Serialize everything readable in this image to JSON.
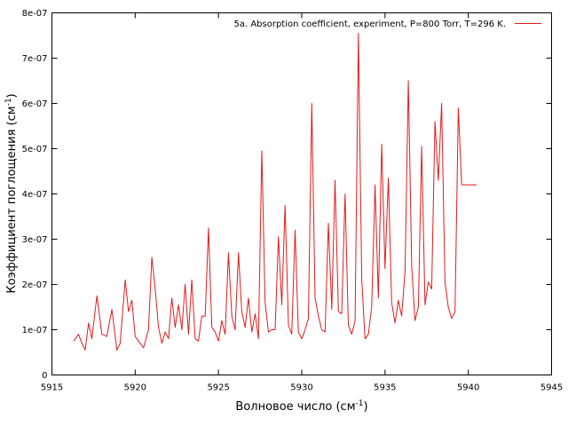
{
  "chart_data": {
    "type": "line",
    "xlabel_main": "Волновое число (см",
    "xlabel_sup": "-1",
    "xlabel_close": ")",
    "ylabel_main": "Коэффициент поглощения (см",
    "ylabel_sup": "-1",
    "ylabel_close": ")",
    "xlim": [
      5915,
      5945
    ],
    "ylim": [
      0,
      8e-07
    ],
    "xticks": [
      5915,
      5920,
      5925,
      5930,
      5935,
      5940,
      5945
    ],
    "xtick_labels": [
      "5915",
      "5920",
      "5925",
      "5930",
      "5935",
      "5940",
      "5945"
    ],
    "yticks": [
      0,
      1e-07,
      2e-07,
      3e-07,
      4e-07,
      5e-07,
      6e-07,
      7e-07,
      8e-07
    ],
    "ytick_labels": [
      "0",
      "1e-07",
      "2e-07",
      "3e-07",
      "4e-07",
      "5e-07",
      "6e-07",
      "7e-07",
      "8e-07"
    ],
    "grid": false,
    "legend_position": "top-right",
    "series": [
      {
        "name": "5a. Absorption coefficient, experiment, P=800 Torr, T=296 K.",
        "color": "#e31a1c",
        "x": [
          5916.3,
          5916.6,
          5916.8,
          5917.0,
          5917.2,
          5917.4,
          5917.7,
          5918.0,
          5918.3,
          5918.6,
          5918.9,
          5919.1,
          5919.4,
          5919.6,
          5919.8,
          5920.0,
          5920.2,
          5920.5,
          5920.8,
          5921.0,
          5921.2,
          5921.4,
          5921.6,
          5921.8,
          5922.0,
          5922.2,
          5922.4,
          5922.6,
          5922.8,
          5923.0,
          5923.2,
          5923.4,
          5923.6,
          5923.8,
          5924.0,
          5924.2,
          5924.4,
          5924.6,
          5924.8,
          5925.0,
          5925.2,
          5925.4,
          5925.6,
          5925.8,
          5926.0,
          5926.2,
          5926.4,
          5926.6,
          5926.8,
          5927.0,
          5927.2,
          5927.4,
          5927.6,
          5927.8,
          5928.0,
          5928.2,
          5928.4,
          5928.6,
          5928.8,
          5929.0,
          5929.2,
          5929.4,
          5929.6,
          5929.8,
          5930.0,
          5930.2,
          5930.4,
          5930.6,
          5930.8,
          5931.0,
          5931.2,
          5931.4,
          5931.6,
          5931.8,
          5932.0,
          5932.2,
          5932.4,
          5932.6,
          5932.8,
          5933.0,
          5933.2,
          5933.4,
          5933.6,
          5933.8,
          5934.0,
          5934.2,
          5934.4,
          5934.6,
          5934.8,
          5935.0,
          5935.2,
          5935.4,
          5935.6,
          5935.8,
          5936.0,
          5936.2,
          5936.4,
          5936.6,
          5936.8,
          5937.0,
          5937.2,
          5937.4,
          5937.6,
          5937.8,
          5938.0,
          5938.2,
          5938.4,
          5938.6,
          5938.8,
          5939.0,
          5939.2,
          5939.4,
          5939.6,
          5939.8,
          5940.0,
          5940.2,
          5940.4,
          5940.5
        ],
        "y": [
          7.5e-08,
          9e-08,
          7e-08,
          5.5e-08,
          1.15e-07,
          8e-08,
          1.75e-07,
          9e-08,
          8.5e-08,
          1.45e-07,
          5.5e-08,
          7e-08,
          2.1e-07,
          1.4e-07,
          1.65e-07,
          8.5e-08,
          7.5e-08,
          6e-08,
          1e-07,
          2.6e-07,
          1.9e-07,
          1.05e-07,
          7e-08,
          9.5e-08,
          8e-08,
          1.7e-07,
          1.05e-07,
          1.55e-07,
          1e-07,
          2e-07,
          9e-08,
          2.1e-07,
          8e-08,
          7.5e-08,
          1.3e-07,
          1.3e-07,
          3.25e-07,
          1.05e-07,
          9.5e-08,
          7.5e-08,
          1.2e-07,
          9e-08,
          2.7e-07,
          1.3e-07,
          1e-07,
          2.7e-07,
          1.4e-07,
          1.05e-07,
          1.7e-07,
          9.5e-08,
          1.35e-07,
          8e-08,
          4.95e-07,
          1.6e-07,
          9.5e-08,
          1e-07,
          1e-07,
          3.05e-07,
          1.55e-07,
          3.75e-07,
          1.1e-07,
          9e-08,
          3.2e-07,
          9.5e-08,
          8e-08,
          1e-07,
          1.25e-07,
          6e-07,
          1.7e-07,
          1.3e-07,
          1e-07,
          9.5e-08,
          3.35e-07,
          1.45e-07,
          4.3e-07,
          1.4e-07,
          1.35e-07,
          4e-07,
          1.1e-07,
          9e-08,
          1.2e-07,
          7.55e-07,
          2.1e-07,
          8e-08,
          9e-08,
          1.5e-07,
          4.2e-07,
          1.7e-07,
          5.1e-07,
          2.35e-07,
          4.35e-07,
          1.6e-07,
          1.15e-07,
          1.65e-07,
          1.3e-07,
          2.3e-07,
          6.5e-07,
          2.4e-07,
          1.2e-07,
          1.5e-07,
          5.05e-07,
          1.55e-07,
          2.05e-07,
          1.9e-07,
          5.6e-07,
          4.3e-07,
          6e-07,
          2.05e-07,
          1.5e-07,
          1.25e-07,
          1.4e-07,
          5.9e-07,
          4.2e-07,
          4.2e-07,
          4.2e-07,
          4.2e-07,
          4.2e-07,
          4.2e-07
        ]
      }
    ]
  }
}
